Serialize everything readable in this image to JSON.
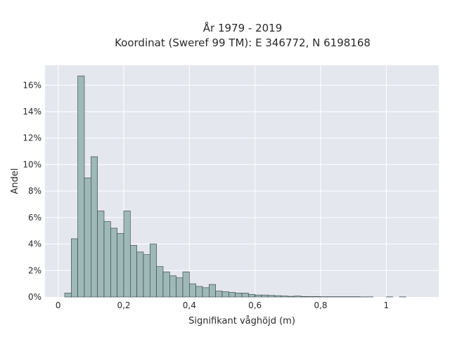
{
  "chart_data": {
    "type": "bar",
    "title": "År 1979 - 2019",
    "subtitle": "Koordinat (Sweref 99 TM): E 346772, N 6198168",
    "xlabel": "Signifikant våghöjd (m)",
    "ylabel": "Andel",
    "xlim": [
      -0.04,
      1.16
    ],
    "ylim": [
      0,
      17.5
    ],
    "bin_width": 0.02,
    "x_ticks": [
      {
        "value": 0,
        "label": "0"
      },
      {
        "value": 0.2,
        "label": "0,2"
      },
      {
        "value": 0.4,
        "label": "0,4"
      },
      {
        "value": 0.6,
        "label": "0,6"
      },
      {
        "value": 0.8,
        "label": "0,8"
      },
      {
        "value": 1.0,
        "label": "1"
      }
    ],
    "y_ticks": [
      {
        "value": 0,
        "label": "0%"
      },
      {
        "value": 2,
        "label": "2%"
      },
      {
        "value": 4,
        "label": "4%"
      },
      {
        "value": 6,
        "label": "6%"
      },
      {
        "value": 8,
        "label": "8%"
      },
      {
        "value": 10,
        "label": "10%"
      },
      {
        "value": 12,
        "label": "12%"
      },
      {
        "value": 14,
        "label": "14%"
      },
      {
        "value": 16,
        "label": "16%"
      }
    ],
    "bins_start": [
      0.02,
      0.04,
      0.06,
      0.08,
      0.1,
      0.12,
      0.14,
      0.16,
      0.18,
      0.2,
      0.22,
      0.24,
      0.26,
      0.28,
      0.3,
      0.32,
      0.34,
      0.36,
      0.38,
      0.4,
      0.42,
      0.44,
      0.46,
      0.48,
      0.5,
      0.52,
      0.54,
      0.56,
      0.58,
      0.6,
      0.62,
      0.64,
      0.66,
      0.68,
      0.7,
      0.72,
      0.74,
      0.76,
      0.78,
      0.8,
      0.82,
      0.84,
      0.86,
      0.88,
      0.9,
      0.92,
      0.94,
      1.0,
      1.04
    ],
    "values": [
      0.3,
      4.4,
      16.7,
      9.0,
      10.6,
      6.5,
      5.7,
      5.2,
      4.8,
      6.5,
      3.9,
      3.4,
      3.2,
      4.0,
      2.3,
      1.9,
      1.6,
      1.45,
      1.9,
      1.0,
      0.8,
      0.7,
      0.95,
      0.45,
      0.4,
      0.35,
      0.3,
      0.3,
      0.2,
      0.15,
      0.15,
      0.12,
      0.1,
      0.07,
      0.05,
      0.07,
      0.04,
      0.03,
      0.03,
      0.02,
      0.02,
      0.02,
      0.02,
      0.02,
      0.02,
      0.01,
      0.01,
      0.01,
      0.01
    ],
    "grid": true,
    "colors": {
      "bar_fill": "#9fb8b8",
      "bar_edge": "#2f3e3e",
      "plot_bg": "#e5e7ef",
      "grid": "#ffffff"
    }
  }
}
